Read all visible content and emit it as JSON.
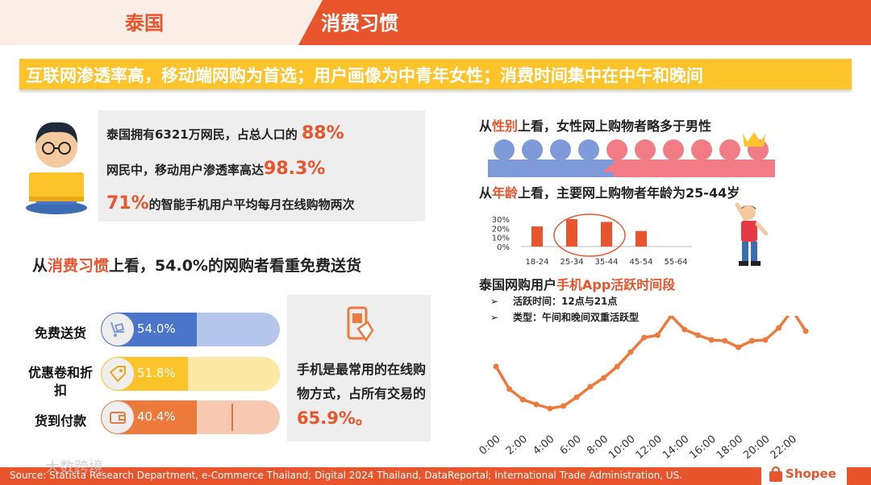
{
  "header": {
    "country": "泰国",
    "topic": "消费习惯"
  },
  "banner": {
    "text": "互联网渗透率高，移动端网购为首选；用户画像为中青年女性；消费时间集中在中午和晚间"
  },
  "stats": {
    "line1_prefix": "泰国拥有6321万网民，占总人口的",
    "line1_value": "88%",
    "line2_prefix": "网民中，移动用户渗透率高达",
    "line2_value": "98.3%",
    "line3_value": "71%",
    "line3_suffix": "的智能手机用户平均每月在线购物两次"
  },
  "consumption": {
    "title_prefix": "从",
    "title_highlight": "消费习惯",
    "title_suffix": "上看，54.0%的网购者看重免费送货"
  },
  "payment_chart": {
    "type": "bar",
    "categories": [
      "免费送货",
      "优惠卷和折扣",
      "货到付款"
    ],
    "values": [
      54.0,
      51.8,
      40.4
    ],
    "value_labels": [
      "54.0%",
      "51.8%",
      "40.4%"
    ],
    "fill_colors": [
      "#4a75c8",
      "#fdc32a",
      "#ec7a3c"
    ],
    "track_colors": [
      "#b4c7ea",
      "#fde9a6",
      "#f7c9b0"
    ],
    "icons": [
      "hand-truck-icon",
      "coupon-tag-icon",
      "wallet-icon"
    ]
  },
  "mobile": {
    "text_prefix": "手机是最常用的在线购物方式，占所有交易的",
    "text_value": "65.9%。",
    "icon": "phone-shopping-icon"
  },
  "gender": {
    "title_prefix": "从",
    "title_highlight": "性别",
    "title_suffix": "上看，女性网上购物者略多于男性",
    "male_color": "#7f9ad8",
    "female_color": "#f17c85"
  },
  "age": {
    "title_prefix": "从",
    "title_highlight": "年龄",
    "title_suffix": "上看，主要网上购物者年龄为25-44岁"
  },
  "chart_data": [
    {
      "type": "bar",
      "categories": [
        "18-24",
        "25-34",
        "35-44",
        "45-54",
        "55-64"
      ],
      "values": [
        22,
        30,
        27,
        17,
        0
      ],
      "yticks": [
        "30%",
        "20%",
        "10%",
        "0%"
      ],
      "ylim": [
        0,
        30
      ],
      "color": "#e8542c",
      "highlight": [
        "25-34",
        "35-44"
      ]
    },
    {
      "type": "line",
      "title_prefix": "泰国网购用户",
      "title_highlight": "手机App活跃时间段",
      "bullets": [
        "活跃时间：12点与21点",
        "类型：午间和晚间双重活跃型"
      ],
      "x": [
        0,
        1,
        2,
        3,
        4,
        5,
        6,
        7,
        8,
        9,
        10,
        11,
        12,
        13,
        14,
        15,
        16,
        17,
        18,
        19,
        20,
        21,
        22,
        23
      ],
      "y": [
        69,
        41,
        28,
        22,
        17,
        20,
        31,
        44,
        55,
        69,
        87,
        105,
        108,
        132,
        115,
        108,
        102,
        101,
        93,
        101,
        102,
        117,
        139,
        113
      ],
      "xticks": [
        "0:00",
        "2:00",
        "4:00",
        "6:00",
        "8:00",
        "10:00",
        "12:00",
        "14:00",
        "16:00",
        "18:00",
        "20:00",
        "22:00"
      ],
      "annotations": [
        {
          "label": "12:00",
          "x": 13
        },
        {
          "label": "21:00",
          "x": 22
        }
      ],
      "color": "#ec7a3c"
    }
  ],
  "footer": {
    "source": "Source: Statista Research Department, e-Commerce Thailand; Digital 2024 Thailand, DataReportal; International Trade Administration, US.",
    "brand": "Shopee",
    "watermark": "大数跨境"
  }
}
